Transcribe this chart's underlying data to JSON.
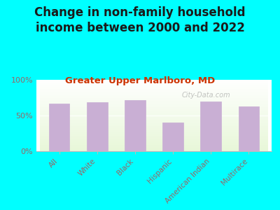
{
  "title": "Change in non-family household\nincome between 2000 and 2022",
  "subtitle": "Greater Upper Marlboro, MD",
  "categories": [
    "All",
    "White",
    "Black",
    "Hispanic",
    "American Indian",
    "Multirace"
  ],
  "values": [
    67,
    69,
    72,
    40,
    70,
    63
  ],
  "bar_color": "#c9afd4",
  "background_color": "#00ffff",
  "ylabel_ticks": [
    "0%",
    "50%",
    "100%"
  ],
  "ytick_vals": [
    0,
    50,
    100
  ],
  "ylim": [
    0,
    100
  ],
  "title_fontsize": 12,
  "title_color": "#1a1a1a",
  "subtitle_fontsize": 9.5,
  "subtitle_color": "#cc3300",
  "tick_color": "#996666",
  "watermark": "City-Data.com"
}
